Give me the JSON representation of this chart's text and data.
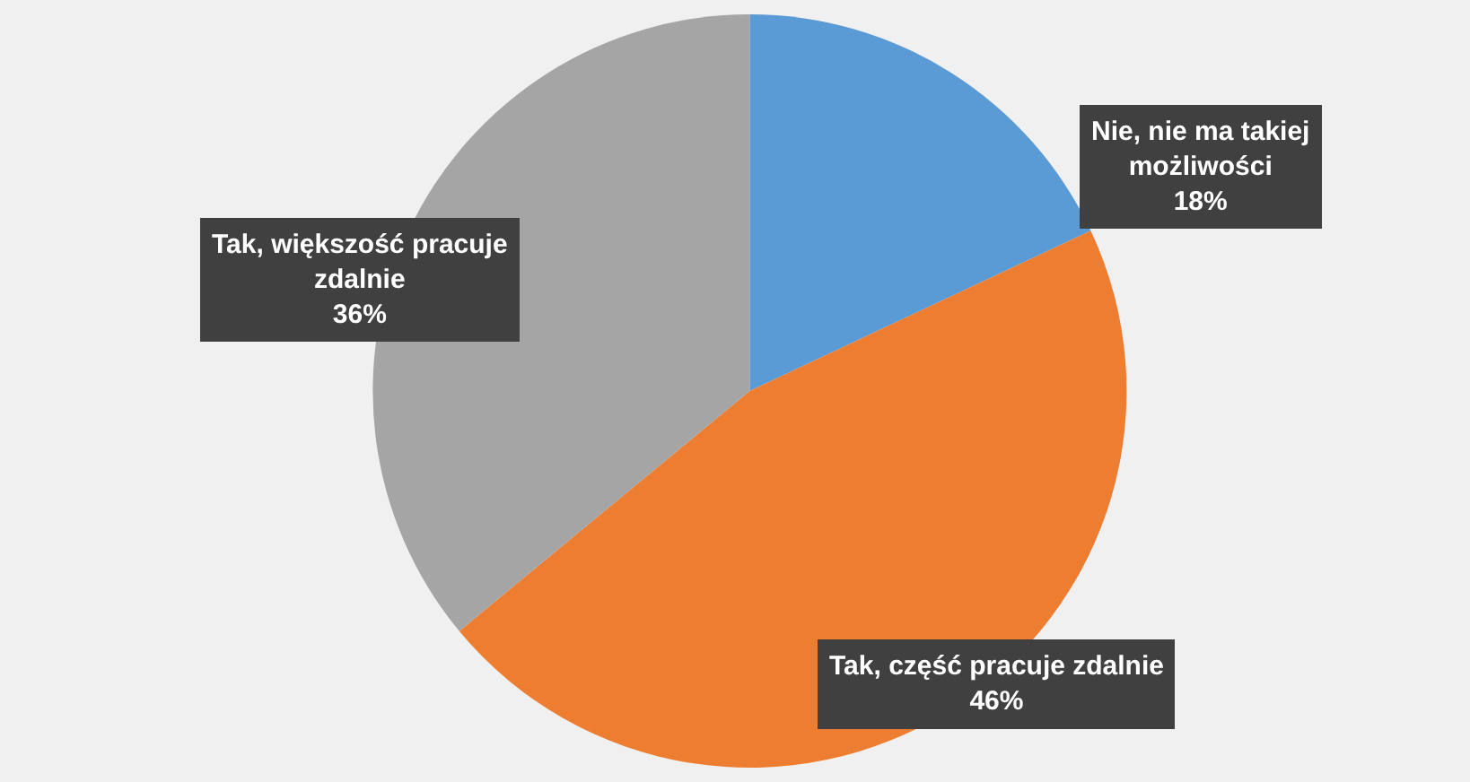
{
  "chart_data": {
    "type": "pie",
    "categories": [
      "Nie, nie ma takiej możliwości",
      "Tak, część pracuje zdalnie",
      "Tak, większość pracuje zdalnie"
    ],
    "values": [
      18,
      46,
      36
    ],
    "value_labels": [
      "18%",
      "46%",
      "36%"
    ],
    "colors": [
      "#5b9bd5",
      "#ed7d31",
      "#a5a5a5"
    ],
    "legend": false
  }
}
